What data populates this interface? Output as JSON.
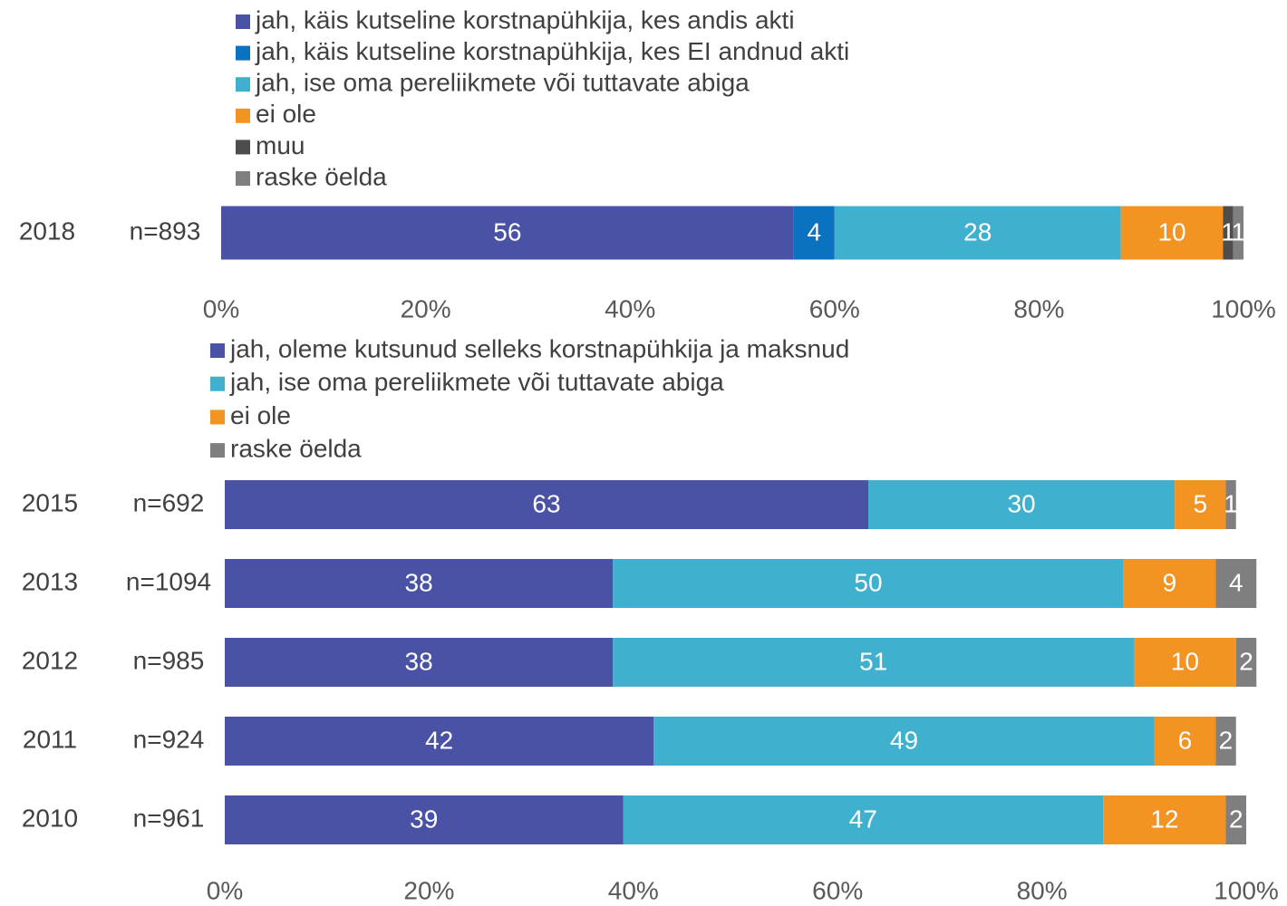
{
  "chart_data": [
    {
      "type": "stacked-bar-horizontal",
      "categories": [
        "2018"
      ],
      "n_labels": [
        "n=893"
      ],
      "series": [
        {
          "name": "jah, käis kutseline korstnapühkija, kes andis akti",
          "color": "#4a52a6",
          "values": [
            56
          ]
        },
        {
          "name": "jah, käis kutseline korstnapühkija, kes EI andnud akti",
          "color": "#0b72c2",
          "values": [
            4
          ]
        },
        {
          "name": "jah, ise oma pereliikmete või tuttavate abiga",
          "color": "#3fb1ce",
          "values": [
            28
          ]
        },
        {
          "name": "ei ole",
          "color": "#f39322",
          "values": [
            10
          ]
        },
        {
          "name": "muu",
          "color": "#4d4d4d",
          "values": [
            1
          ]
        },
        {
          "name": "raske öelda",
          "color": "#7f7f7f",
          "values": [
            1
          ]
        }
      ],
      "xlim": [
        0,
        100
      ],
      "xticks": [
        {
          "value": 0,
          "label": "0%"
        },
        {
          "value": 20,
          "label": "20%"
        },
        {
          "value": 40,
          "label": "40%"
        },
        {
          "value": 60,
          "label": "60%"
        },
        {
          "value": 80,
          "label": "80%"
        },
        {
          "value": 100,
          "label": "100%"
        }
      ]
    },
    {
      "type": "stacked-bar-horizontal",
      "categories": [
        "2015",
        "2013",
        "2012",
        "2011",
        "2010"
      ],
      "n_labels": [
        "n=692",
        "n=1094",
        "n=985",
        "n=924",
        "n=961"
      ],
      "series": [
        {
          "name": "jah, oleme kutsunud selleks korstnapühkija ja maksnud",
          "color": "#4a52a6",
          "values": [
            63,
            38,
            38,
            42,
            39
          ]
        },
        {
          "name": "jah, ise oma pereliikmete või tuttavate abiga",
          "color": "#3fb1ce",
          "values": [
            30,
            50,
            51,
            49,
            47
          ]
        },
        {
          "name": "ei ole",
          "color": "#f39322",
          "values": [
            5,
            9,
            10,
            6,
            12
          ]
        },
        {
          "name": "raske öelda",
          "color": "#7f7f7f",
          "values": [
            1,
            4,
            2,
            2,
            2
          ]
        }
      ],
      "xlim": [
        0,
        100
      ],
      "xticks": [
        {
          "value": 0,
          "label": "0%"
        },
        {
          "value": 20,
          "label": "20%"
        },
        {
          "value": 40,
          "label": "40%"
        },
        {
          "value": 60,
          "label": "60%"
        },
        {
          "value": 80,
          "label": "80%"
        },
        {
          "value": 100,
          "label": "100%"
        }
      ]
    }
  ]
}
